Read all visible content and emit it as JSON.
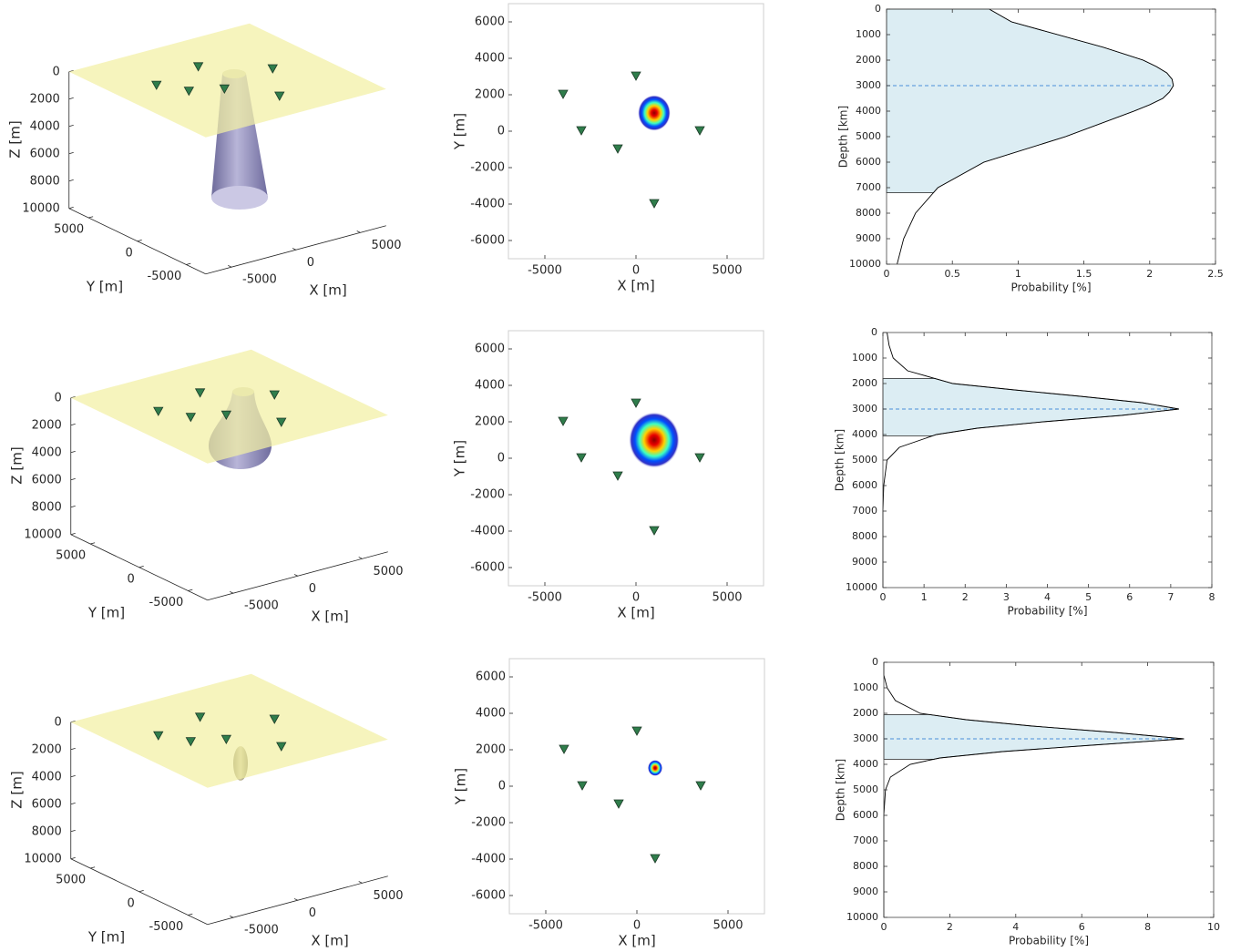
{
  "chart_data": [
    {
      "type": "surface3d",
      "xlabel": "X [m]",
      "ylabel": "Y [m]",
      "zlabel": "Z [m]",
      "xlim": [
        -7000,
        7000
      ],
      "ylim": [
        -7000,
        7000
      ],
      "zlim": [
        0,
        10000
      ],
      "xticks": [
        -5000,
        0,
        5000
      ],
      "yticks": [
        -5000,
        0,
        5000
      ],
      "zticks": [
        0,
        2000,
        4000,
        6000,
        8000,
        10000
      ],
      "stations": {
        "x": [
          -4000,
          -3000,
          -1000,
          0,
          3500,
          1000
        ],
        "y": [
          2000,
          0,
          -1000,
          3000,
          0,
          -4000
        ],
        "color": "#2f7d4b"
      },
      "plane_color": "#f2f0a4",
      "shape": "cone"
    },
    {
      "type": "map",
      "xlabel": "X [m]",
      "ylabel": "Y [m]",
      "xlim": [
        -7000,
        7000
      ],
      "ylim": [
        -7000,
        7000
      ],
      "xticks": [
        -5000,
        0,
        5000
      ],
      "yticks": [
        -6000,
        -4000,
        -2000,
        0,
        2000,
        4000,
        6000
      ],
      "stations": {
        "x": [
          -4000,
          -3000,
          -1000,
          0,
          3500,
          1000
        ],
        "y": [
          2000,
          0,
          -1000,
          3000,
          0,
          -4000
        ],
        "color": "#2f7d4b"
      },
      "source": {
        "x": 1000,
        "y": 1000,
        "radius": 900
      }
    },
    {
      "type": "profile",
      "xlabel": "Probability [%]",
      "ylabel": "Depth [km]",
      "xlim": [
        0,
        2.5
      ],
      "ylim": [
        0,
        10000
      ],
      "xticks": [
        0,
        0.5,
        1,
        1.5,
        2,
        2.5
      ],
      "yticks": [
        0,
        1000,
        2000,
        3000,
        4000,
        5000,
        6000,
        7000,
        8000,
        9000,
        10000
      ],
      "depth": [
        0,
        500,
        1000,
        1500,
        2000,
        2250,
        2500,
        2750,
        3000,
        3250,
        3500,
        3750,
        4000,
        4500,
        5000,
        6000,
        7000,
        8000,
        9000,
        10000
      ],
      "values": [
        0.78,
        0.95,
        1.3,
        1.65,
        1.95,
        2.05,
        2.13,
        2.17,
        2.18,
        2.15,
        2.1,
        2.0,
        1.88,
        1.62,
        1.36,
        0.74,
        0.39,
        0.22,
        0.13,
        0.08
      ],
      "shade_range": [
        0,
        7200
      ],
      "mean": 3000,
      "color": "#000000",
      "shade_color": "#dcedf3",
      "mean_color": "#4a90d9"
    },
    {
      "type": "surface3d",
      "xlabel": "X [m]",
      "ylabel": "Y [m]",
      "zlabel": "Z [m]",
      "xlim": [
        -7000,
        7000
      ],
      "ylim": [
        -7000,
        7000
      ],
      "zlim": [
        0,
        10000
      ],
      "xticks": [
        -5000,
        0,
        5000
      ],
      "yticks": [
        -5000,
        0,
        5000
      ],
      "zticks": [
        0,
        2000,
        4000,
        6000,
        8000,
        10000
      ],
      "stations": {
        "x": [
          -4000,
          -3000,
          -1000,
          0,
          3500,
          1000
        ],
        "y": [
          2000,
          0,
          -1000,
          3000,
          0,
          -4000
        ],
        "color": "#2f7d4b"
      },
      "plane_color": "#f2f0a4",
      "shape": "drop"
    },
    {
      "type": "map",
      "xlabel": "X [m]",
      "ylabel": "Y [m]",
      "xlim": [
        -7000,
        7000
      ],
      "ylim": [
        -7000,
        7000
      ],
      "xticks": [
        -5000,
        0,
        5000
      ],
      "yticks": [
        -6000,
        -4000,
        -2000,
        0,
        2000,
        4000,
        6000
      ],
      "stations": {
        "x": [
          -4000,
          -3000,
          -1000,
          0,
          3500,
          1000
        ],
        "y": [
          2000,
          0,
          -1000,
          3000,
          0,
          -4000
        ],
        "color": "#2f7d4b"
      },
      "source": {
        "x": 1000,
        "y": 1000,
        "radius": 1400
      }
    },
    {
      "type": "profile",
      "xlabel": "Probability [%]",
      "ylabel": "Depth [km]",
      "xlim": [
        0,
        8
      ],
      "ylim": [
        0,
        10000
      ],
      "xticks": [
        0,
        1,
        2,
        3,
        4,
        5,
        6,
        7,
        8
      ],
      "yticks": [
        0,
        1000,
        2000,
        3000,
        4000,
        5000,
        6000,
        7000,
        8000,
        9000,
        10000
      ],
      "depth": [
        0,
        500,
        1000,
        1500,
        2000,
        2250,
        2500,
        2750,
        3000,
        3250,
        3500,
        3750,
        4000,
        4500,
        5000,
        6000,
        7000,
        8000,
        9000,
        10000
      ],
      "values": [
        0.1,
        0.15,
        0.25,
        0.6,
        1.7,
        3.2,
        4.8,
        6.3,
        7.2,
        5.8,
        3.9,
        2.3,
        1.3,
        0.4,
        0.1,
        0.02,
        0,
        0,
        0,
        0
      ],
      "shade_range": [
        1800,
        4050
      ],
      "mean": 3000,
      "color": "#000000",
      "shade_color": "#dcedf3",
      "mean_color": "#4a90d9"
    },
    {
      "type": "surface3d",
      "xlabel": "X [m]",
      "ylabel": "Y [m]",
      "zlabel": "Z [m]",
      "xlim": [
        -7000,
        7000
      ],
      "ylim": [
        -7000,
        7000
      ],
      "zlim": [
        0,
        10000
      ],
      "xticks": [
        -5000,
        0,
        5000
      ],
      "yticks": [
        -5000,
        0,
        5000
      ],
      "zticks": [
        0,
        2000,
        4000,
        6000,
        8000,
        10000
      ],
      "stations": {
        "x": [
          -4000,
          -3000,
          -1000,
          0,
          3500,
          1000
        ],
        "y": [
          2000,
          0,
          -1000,
          3000,
          0,
          -4000
        ],
        "color": "#2f7d4b"
      },
      "plane_color": "#f2f0a4",
      "shape": "ellipsoid"
    },
    {
      "type": "map",
      "xlabel": "X [m]",
      "ylabel": "Y [m]",
      "xlim": [
        -7000,
        7000
      ],
      "ylim": [
        -7000,
        7000
      ],
      "xticks": [
        -5000,
        0,
        5000
      ],
      "yticks": [
        -6000,
        -4000,
        -2000,
        0,
        2000,
        4000,
        6000
      ],
      "stations": {
        "x": [
          -4000,
          -3000,
          -1000,
          0,
          3500,
          1000
        ],
        "y": [
          2000,
          0,
          -1000,
          3000,
          0,
          -4000
        ],
        "color": "#2f7d4b"
      },
      "source": {
        "x": 1000,
        "y": 1000,
        "radius": 400
      }
    },
    {
      "type": "profile",
      "xlabel": "Probability [%]",
      "ylabel": "Depth [km]",
      "xlim": [
        0,
        10
      ],
      "ylim": [
        0,
        10000
      ],
      "xticks": [
        0,
        2,
        4,
        6,
        8,
        10
      ],
      "yticks": [
        0,
        1000,
        2000,
        3000,
        4000,
        5000,
        6000,
        7000,
        8000,
        9000,
        10000
      ],
      "depth": [
        0,
        500,
        1000,
        1500,
        2000,
        2250,
        2500,
        2750,
        3000,
        3250,
        3500,
        3750,
        4000,
        4500,
        5000,
        6000,
        7000,
        8000,
        9000,
        10000
      ],
      "values": [
        0,
        0,
        0.1,
        0.35,
        1.1,
        2.5,
        4.5,
        7,
        9.1,
        6.3,
        3.6,
        1.7,
        0.8,
        0.2,
        0.05,
        0,
        0,
        0,
        0,
        0
      ],
      "shade_range": [
        2050,
        3800
      ],
      "mean": 3000,
      "color": "#000000",
      "shade_color": "#dcedf3",
      "mean_color": "#4a90d9"
    }
  ]
}
